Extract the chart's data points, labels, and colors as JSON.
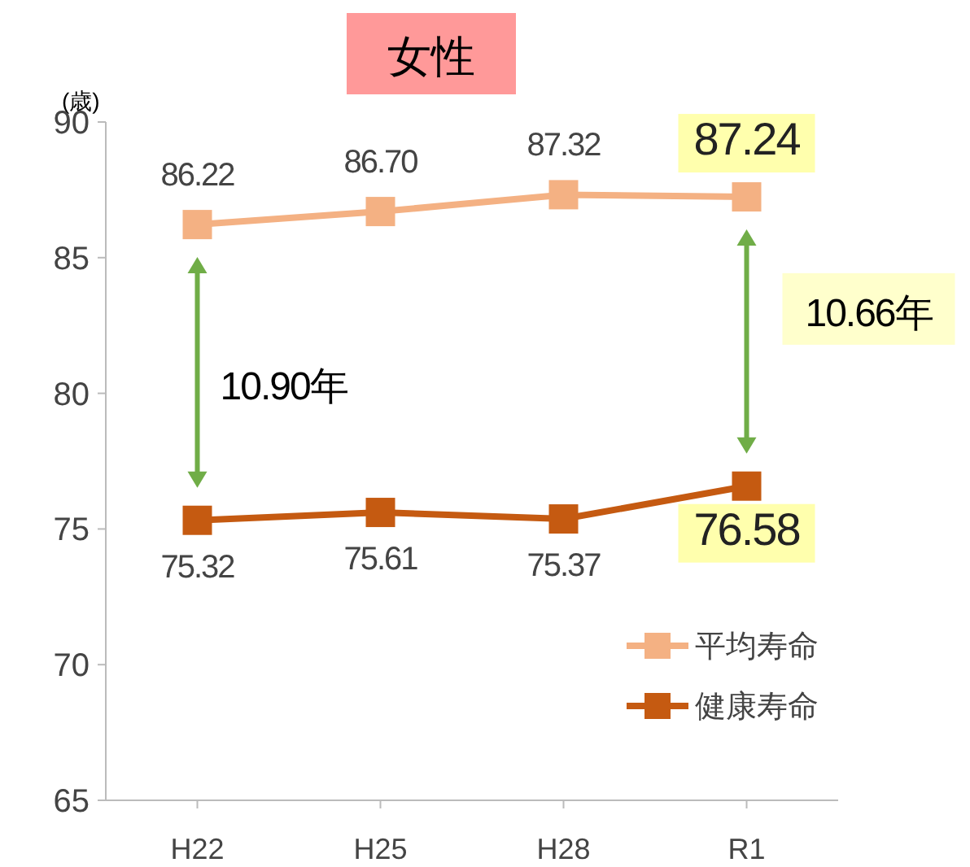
{
  "chart_data": {
    "type": "line",
    "title": "女性",
    "ylabel": "(歳)",
    "categories": [
      "H22",
      "H25",
      "H28",
      "R1"
    ],
    "series": [
      {
        "name": "平均寿命",
        "color": "#f4b183",
        "values": [
          86.22,
          86.7,
          87.32,
          87.24
        ],
        "value_labels": [
          "86.22",
          "86.70",
          "87.32",
          "87.24"
        ]
      },
      {
        "name": "健康寿命",
        "color": "#c55a11",
        "values": [
          75.32,
          75.61,
          75.37,
          76.58
        ],
        "value_labels": [
          "75.32",
          "75.61",
          "75.37",
          "76.58"
        ]
      }
    ],
    "ylim": [
      65,
      90
    ],
    "yticks": [
      65,
      70,
      75,
      80,
      85,
      90
    ],
    "marker": "square",
    "legend": "bottom right",
    "grid": false,
    "annotations": [
      "10.90年",
      "10.66年"
    ]
  }
}
